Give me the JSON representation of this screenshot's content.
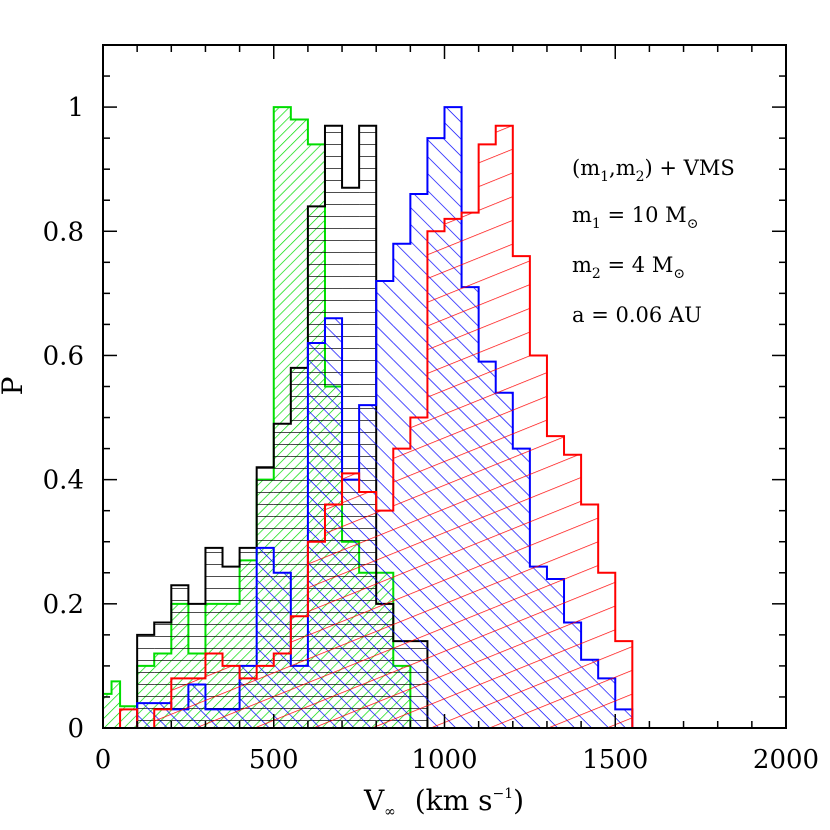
{
  "chart_data": {
    "type": "histogram",
    "title": "",
    "xlabel": "V",
    "xlabel_subscript": "∞",
    "xlabel_units": "(km s",
    "xlabel_units_exponent": "−1",
    "xlabel_units_close": ")",
    "ylabel": "P",
    "xlim": [
      0,
      2000
    ],
    "ylim": [
      0,
      1.1
    ],
    "x_ticks": [
      0,
      500,
      1000,
      1500,
      2000
    ],
    "x_tick_labels": [
      "0",
      "500",
      "1000",
      "1500",
      "2000"
    ],
    "y_ticks": [
      0,
      0.2,
      0.4,
      0.6,
      0.8,
      1
    ],
    "y_tick_labels": [
      "0",
      "0.2",
      "0.4",
      "0.6",
      "0.8",
      "1"
    ],
    "bin_width": 50,
    "annotations": [
      {
        "parts": [
          {
            "t": "(m"
          },
          {
            "t": "1",
            "sub": true
          },
          {
            "t": ",m"
          },
          {
            "t": "2",
            "sub": true
          },
          {
            "t": ")  +  VMS"
          }
        ]
      },
      {
        "parts": [
          {
            "t": "m"
          },
          {
            "t": "1",
            "sub": true
          },
          {
            "t": "  =  10  M"
          },
          {
            "t": "⊙",
            "sub": true
          }
        ]
      },
      {
        "parts": [
          {
            "t": "m"
          },
          {
            "t": "2",
            "sub": true
          },
          {
            "t": "  =  4  M"
          },
          {
            "t": "⊙",
            "sub": true
          }
        ]
      },
      {
        "parts": [
          {
            "t": "a  =  0.06 AU"
          }
        ]
      }
    ],
    "series": [
      {
        "color": "#00dd00",
        "hatch": "diagonal-dense",
        "bins": [
          [
            0,
            0.055
          ],
          [
            25,
            0.075
          ],
          [
            50,
            0.035
          ],
          [
            75,
            0.035
          ],
          [
            100,
            0.1
          ],
          [
            150,
            0.12
          ],
          [
            200,
            0.2
          ],
          [
            250,
            0.12
          ],
          [
            300,
            0.2
          ],
          [
            350,
            0.2
          ],
          [
            400,
            0.27
          ],
          [
            450,
            0.4
          ],
          [
            500,
            1.0
          ],
          [
            550,
            0.98
          ],
          [
            600,
            0.94
          ],
          [
            650,
            0.55
          ],
          [
            700,
            0.3
          ],
          [
            750,
            0.25
          ],
          [
            800,
            0.25
          ],
          [
            850,
            0.1
          ],
          [
            900,
            0.0
          ]
        ]
      },
      {
        "color": "#000000",
        "hatch": "horizontal",
        "bins": [
          [
            100,
            0.15
          ],
          [
            150,
            0.17
          ],
          [
            200,
            0.23
          ],
          [
            250,
            0.2
          ],
          [
            300,
            0.29
          ],
          [
            350,
            0.26
          ],
          [
            400,
            0.29
          ],
          [
            450,
            0.42
          ],
          [
            500,
            0.49
          ],
          [
            550,
            0.58
          ],
          [
            600,
            0.84
          ],
          [
            650,
            0.97
          ],
          [
            700,
            0.87
          ],
          [
            750,
            0.97
          ],
          [
            800,
            0.2
          ],
          [
            850,
            0.14
          ],
          [
            900,
            0.14
          ],
          [
            950,
            0.0
          ]
        ]
      },
      {
        "color": "#0000ff",
        "hatch": "diagonal-backslash",
        "bins": [
          [
            100,
            0.04
          ],
          [
            150,
            0.04
          ],
          [
            200,
            0.03
          ],
          [
            250,
            0.07
          ],
          [
            300,
            0.03
          ],
          [
            350,
            0.03
          ],
          [
            400,
            0.1
          ],
          [
            450,
            0.29
          ],
          [
            500,
            0.25
          ],
          [
            550,
            0.1
          ],
          [
            600,
            0.62
          ],
          [
            650,
            0.66
          ],
          [
            700,
            0.4
          ],
          [
            750,
            0.52
          ],
          [
            800,
            0.72
          ],
          [
            850,
            0.78
          ],
          [
            900,
            0.86
          ],
          [
            950,
            0.95
          ],
          [
            1000,
            1.0
          ],
          [
            1050,
            0.71
          ],
          [
            1100,
            0.59
          ],
          [
            1150,
            0.54
          ],
          [
            1200,
            0.45
          ],
          [
            1250,
            0.26
          ],
          [
            1300,
            0.24
          ],
          [
            1350,
            0.17
          ],
          [
            1400,
            0.11
          ],
          [
            1450,
            0.08
          ],
          [
            1500,
            0.03
          ],
          [
            1550,
            0.0
          ]
        ]
      },
      {
        "color": "#ff0000",
        "hatch": "diagonal-shallow",
        "bins": [
          [
            50,
            0.03
          ],
          [
            100,
            0.0
          ],
          [
            150,
            0.03
          ],
          [
            200,
            0.08
          ],
          [
            250,
            0.08
          ],
          [
            300,
            0.12
          ],
          [
            350,
            0.1
          ],
          [
            400,
            0.08
          ],
          [
            450,
            0.1
          ],
          [
            500,
            0.12
          ],
          [
            550,
            0.18
          ],
          [
            600,
            0.3
          ],
          [
            650,
            0.36
          ],
          [
            700,
            0.41
          ],
          [
            750,
            0.38
          ],
          [
            800,
            0.35
          ],
          [
            850,
            0.45
          ],
          [
            900,
            0.5
          ],
          [
            950,
            0.8
          ],
          [
            1000,
            0.82
          ],
          [
            1050,
            0.83
          ],
          [
            1100,
            0.94
          ],
          [
            1150,
            0.97
          ],
          [
            1200,
            0.76
          ],
          [
            1250,
            0.6
          ],
          [
            1300,
            0.47
          ],
          [
            1350,
            0.44
          ],
          [
            1400,
            0.36
          ],
          [
            1450,
            0.25
          ],
          [
            1500,
            0.14
          ],
          [
            1550,
            0.0
          ]
        ]
      }
    ]
  }
}
